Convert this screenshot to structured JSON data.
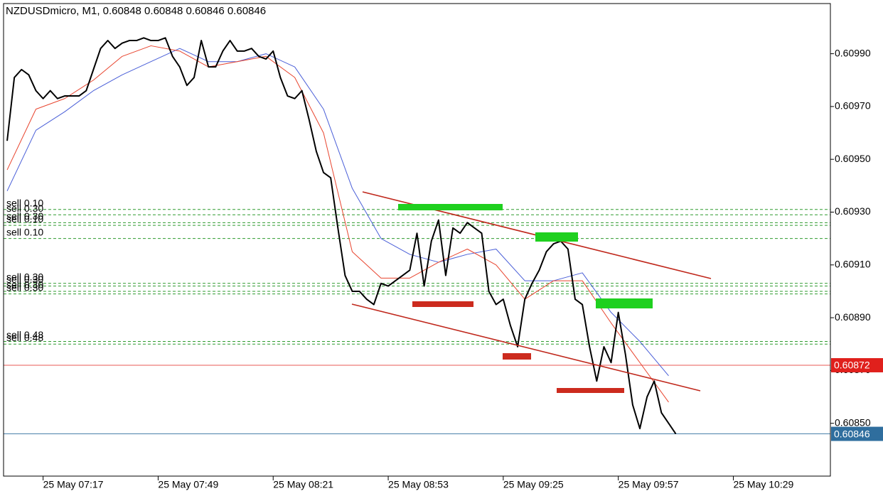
{
  "chart_data": {
    "type": "line",
    "title": "NZDUSDmicro, M1, 0.60848 0.60848 0.60846 0.60846",
    "xlim": [
      -0.5,
      114.5
    ],
    "ylim": [
      0.6083,
      0.61009
    ],
    "xticks": [
      {
        "value": 5,
        "label": "25 May 07:17"
      },
      {
        "value": 21,
        "label": "25 May 07:49"
      },
      {
        "value": 37,
        "label": "25 May 08:21"
      },
      {
        "value": 53,
        "label": "25 May 08:53"
      },
      {
        "value": 69,
        "label": "25 May 09:25"
      },
      {
        "value": 85,
        "label": "25 May 09:57"
      },
      {
        "value": 101,
        "label": "25 May 10:29"
      }
    ],
    "yticks": [
      {
        "value": 0.6099,
        "label": "0.60990"
      },
      {
        "value": 0.6097,
        "label": "0.60970"
      },
      {
        "value": 0.6095,
        "label": "0.60950"
      },
      {
        "value": 0.6093,
        "label": "0.60930"
      },
      {
        "value": 0.6091,
        "label": "0.60910"
      },
      {
        "value": 0.6089,
        "label": "0.60890"
      },
      {
        "value": 0.6087,
        "label": "0.60870"
      },
      {
        "value": 0.6085,
        "label": "0.60850"
      }
    ],
    "series": [
      {
        "color": "#000000",
        "values": [
          0.60957,
          0.60981,
          0.60984,
          0.60982,
          0.60976,
          0.60973,
          0.60976,
          0.60973,
          0.60974,
          0.60974,
          0.60974,
          0.60976,
          0.60984,
          0.60992,
          0.60995,
          0.60992,
          0.60994,
          0.60995,
          0.60995,
          0.60996,
          0.60995,
          0.60995,
          0.60996,
          0.60989,
          0.60985,
          0.60978,
          0.60981,
          0.60995,
          0.60985,
          0.60985,
          0.60991,
          0.60995,
          0.60991,
          0.60991,
          0.60992,
          0.60989,
          0.60988,
          0.60991,
          0.60981,
          0.60974,
          0.60973,
          0.60976,
          0.60965,
          0.60953,
          0.60945,
          0.60943,
          0.60924,
          0.60906,
          0.609,
          0.609,
          0.60897,
          0.60895,
          0.60903,
          0.60902,
          0.60904,
          0.60906,
          0.60908,
          0.60922,
          0.60902,
          0.60919,
          0.60927,
          0.60906,
          0.60924,
          0.60922,
          0.60926,
          0.60924,
          0.60922,
          0.609,
          0.60895,
          0.60897,
          0.60887,
          0.60879,
          0.60897,
          0.60903,
          0.60908,
          0.60915,
          0.60918,
          0.60919,
          0.60916,
          0.60897,
          0.60895,
          0.60879,
          0.60866,
          0.60879,
          0.60873,
          0.60892,
          0.60876,
          0.60857,
          0.60848,
          0.6086,
          0.60866,
          0.60854,
          0.6085,
          0.60846
        ]
      },
      {
        "color": "#e8442e",
        "x": [
          0,
          4,
          8,
          12,
          16,
          20,
          24,
          28,
          32,
          36,
          40,
          44,
          48,
          52,
          56,
          60,
          64,
          68,
          72,
          76,
          80,
          84,
          88,
          92
        ],
        "values": [
          0.60946,
          0.60969,
          0.60973,
          0.6098,
          0.60989,
          0.60993,
          0.60991,
          0.60985,
          0.60987,
          0.60989,
          0.60981,
          0.6096,
          0.60915,
          0.60905,
          0.60905,
          0.60911,
          0.60916,
          0.6091,
          0.60897,
          0.60904,
          0.60904,
          0.60888,
          0.60873,
          0.60858
        ]
      },
      {
        "color": "#4a5fd8",
        "x": [
          0,
          4,
          8,
          12,
          16,
          20,
          24,
          28,
          32,
          36,
          40,
          44,
          48,
          52,
          56,
          60,
          64,
          68,
          72,
          76,
          80,
          84,
          88,
          92
        ],
        "values": [
          0.60938,
          0.60961,
          0.60968,
          0.60976,
          0.60982,
          0.60987,
          0.60992,
          0.60987,
          0.60987,
          0.6099,
          0.60985,
          0.60969,
          0.60939,
          0.6092,
          0.60914,
          0.60911,
          0.60914,
          0.60916,
          0.60904,
          0.60904,
          0.60907,
          0.60892,
          0.60881,
          0.60868
        ]
      }
    ],
    "price_lines": [
      {
        "value": 0.60872,
        "color": "#e0201c"
      },
      {
        "value": 0.60846,
        "color": "#2f6e9e"
      }
    ],
    "order_color": "#2e9b2e",
    "orders": [
      {
        "label": "sell 0.10",
        "value": 0.60931
      },
      {
        "label": "sell 0.30",
        "value": 0.60929
      },
      {
        "label": "sell 0.30",
        "value": 0.60926
      },
      {
        "label": "sell 0.10",
        "value": 0.60925
      },
      {
        "label": "sell 0.10",
        "value": 0.6092
      },
      {
        "label": "sell 0.30",
        "value": 0.60903
      },
      {
        "label": "sell 0.30",
        "value": 0.60902
      },
      {
        "label": "sell 0.30",
        "value": 0.609
      },
      {
        "label": "sell 0.30",
        "value": 0.60899
      },
      {
        "label": "sell 0.48",
        "value": 0.60881
      },
      {
        "label": "sell 0.48",
        "value": 0.6088
      }
    ]
  }
}
